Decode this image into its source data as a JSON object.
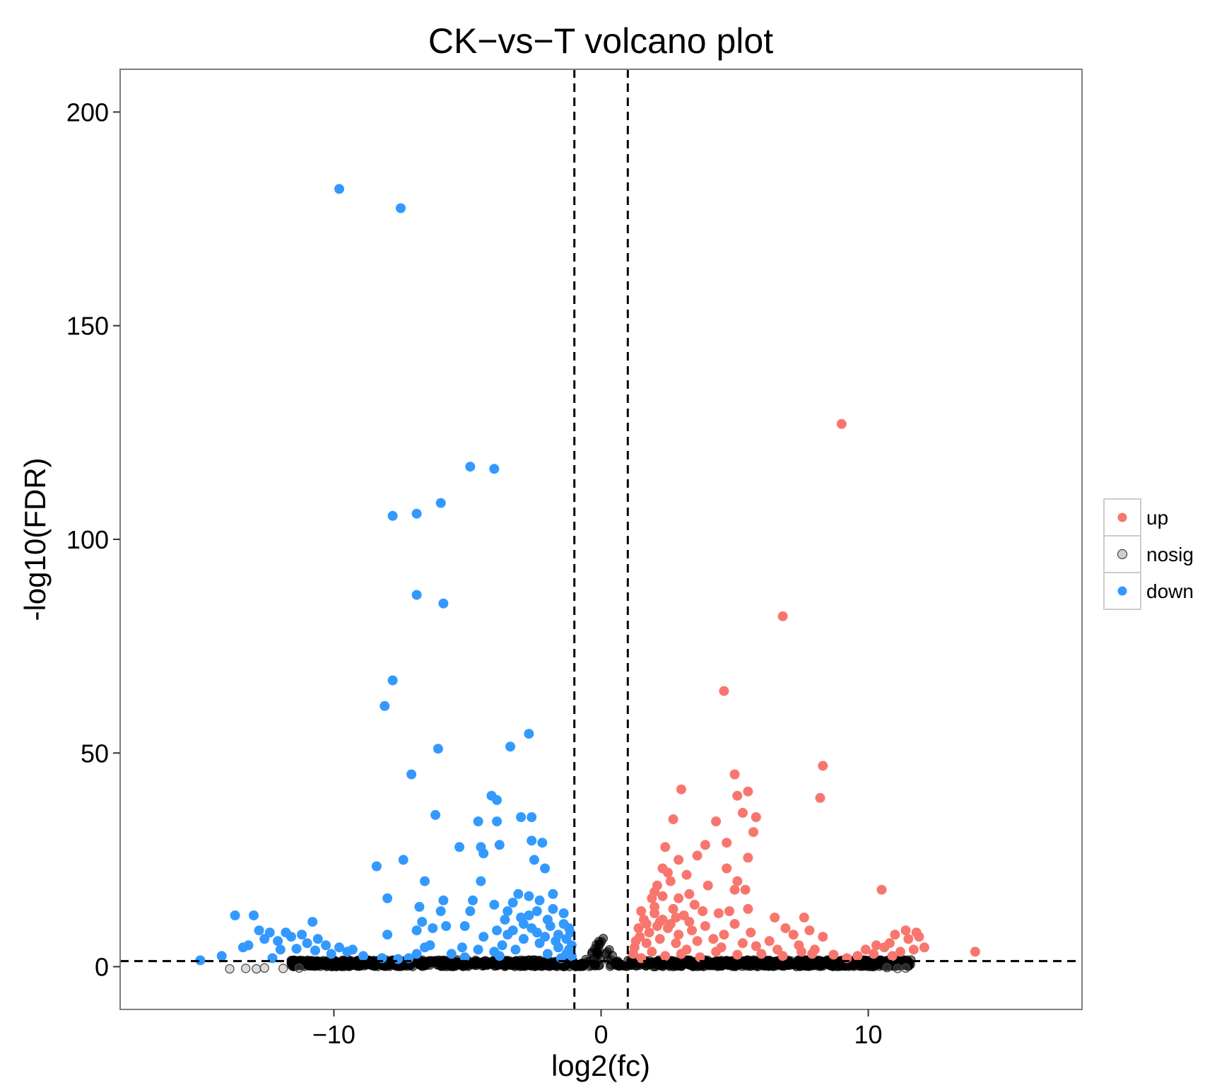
{
  "chart_data": {
    "type": "scatter",
    "title": "CK−vs−T volcano plot",
    "xlabel": "log2(fc)",
    "ylabel": "-log10(FDR)",
    "xlim": [
      -18,
      18
    ],
    "ylim": [
      -10,
      210
    ],
    "x_ticks": [
      -10,
      0,
      10
    ],
    "x_tick_labels": [
      "−10",
      "0",
      "10"
    ],
    "y_ticks": [
      0,
      50,
      100,
      150,
      200
    ],
    "y_tick_labels": [
      "0",
      "50",
      "100",
      "150",
      "200"
    ],
    "grid": false,
    "legend_position": "right",
    "thresholds": {
      "x": [
        -1,
        1
      ],
      "y": 1.3
    },
    "colors": {
      "up": "#F8766D",
      "nosig": "#000000",
      "down": "#3399FF"
    },
    "legend": [
      {
        "key": "up",
        "label": "up"
      },
      {
        "key": "nosig",
        "label": "nosig"
      },
      {
        "key": "down",
        "label": "down"
      }
    ],
    "series": [
      {
        "name": "down",
        "points": [
          [
            -9.8,
            182
          ],
          [
            -7.5,
            177.5
          ],
          [
            -4.9,
            117
          ],
          [
            -4.0,
            116.5
          ],
          [
            -6.0,
            108.5
          ],
          [
            -6.9,
            106
          ],
          [
            -7.8,
            105.5
          ],
          [
            -6.9,
            87
          ],
          [
            -5.9,
            85
          ],
          [
            -7.8,
            67
          ],
          [
            -8.1,
            61
          ],
          [
            -3.4,
            51.5
          ],
          [
            -2.7,
            54.5
          ],
          [
            -6.1,
            51
          ],
          [
            -7.1,
            45
          ],
          [
            -4.1,
            40
          ],
          [
            -3.9,
            39
          ],
          [
            -6.2,
            35.5
          ],
          [
            -3.0,
            35
          ],
          [
            -2.6,
            35
          ],
          [
            -4.6,
            34
          ],
          [
            -3.9,
            34
          ],
          [
            -2.6,
            29.5
          ],
          [
            -2.2,
            29
          ],
          [
            -3.8,
            28.5
          ],
          [
            -4.5,
            28
          ],
          [
            -5.3,
            28
          ],
          [
            -4.4,
            26.5
          ],
          [
            -2.5,
            25
          ],
          [
            -8.4,
            23.5
          ],
          [
            -7.4,
            25
          ],
          [
            -2.1,
            23
          ],
          [
            -4.5,
            20
          ],
          [
            -6.6,
            20
          ],
          [
            -3.1,
            17
          ],
          [
            -2.7,
            16.5
          ],
          [
            -1.8,
            17
          ],
          [
            -8.0,
            16
          ],
          [
            -5.9,
            15.5
          ],
          [
            -4.8,
            15.5
          ],
          [
            -4.0,
            14.5
          ],
          [
            -3.3,
            15
          ],
          [
            -2.3,
            15.5
          ],
          [
            -6.8,
            14
          ],
          [
            -6.0,
            13
          ],
          [
            -4.9,
            13
          ],
          [
            -3.5,
            13
          ],
          [
            -2.7,
            12
          ],
          [
            -1.4,
            12.5
          ],
          [
            -6.7,
            10.5
          ],
          [
            -6.3,
            9
          ],
          [
            -5.8,
            9.5
          ],
          [
            -5.1,
            9.5
          ],
          [
            -3.9,
            8.5
          ],
          [
            -3.0,
            11.5
          ],
          [
            -2.0,
            11
          ],
          [
            -8.0,
            7.5
          ],
          [
            -6.9,
            8.5
          ],
          [
            -4.4,
            7
          ],
          [
            -3.5,
            7.5
          ],
          [
            -2.4,
            8
          ],
          [
            -1.2,
            9
          ],
          [
            -13.7,
            12
          ],
          [
            -13.0,
            12
          ],
          [
            -10.8,
            10.5
          ],
          [
            -12.8,
            8.5
          ],
          [
            -12.4,
            8
          ],
          [
            -11.8,
            8
          ],
          [
            -11.2,
            7.5
          ],
          [
            -10.6,
            6.5
          ],
          [
            -11.6,
            7
          ],
          [
            -12.1,
            6
          ],
          [
            -11.0,
            5.5
          ],
          [
            -10.3,
            5
          ],
          [
            -9.8,
            4.5
          ],
          [
            -9.3,
            4
          ],
          [
            -13.2,
            5
          ],
          [
            -13.4,
            4.5
          ],
          [
            -12.0,
            4
          ],
          [
            -10.1,
            3
          ],
          [
            -8.9,
            2.5
          ],
          [
            -12.3,
            2
          ],
          [
            -14.2,
            2.5
          ],
          [
            -15.0,
            1.5
          ],
          [
            -8.2,
            2
          ],
          [
            -7.6,
            1.8
          ],
          [
            -6.6,
            4.5
          ],
          [
            -6.4,
            5
          ],
          [
            -5.2,
            4.5
          ],
          [
            -4.6,
            4
          ],
          [
            -3.7,
            5
          ],
          [
            -2.9,
            6.5
          ],
          [
            -2.3,
            5.5
          ],
          [
            -1.7,
            6
          ],
          [
            -1.3,
            6.5
          ],
          [
            -1.1,
            5
          ],
          [
            -3.2,
            4
          ],
          [
            -5.6,
            3
          ],
          [
            -4.0,
            3.5
          ],
          [
            -2.0,
            3
          ],
          [
            -1.5,
            2
          ],
          [
            -1.2,
            4
          ],
          [
            -6.9,
            3
          ],
          [
            -1.9,
            9.5
          ],
          [
            -2.6,
            9
          ],
          [
            -3.3,
            8.5
          ],
          [
            -2.1,
            7
          ],
          [
            -1.6,
            7.5
          ],
          [
            -1.4,
            10
          ],
          [
            -1.8,
            13.5
          ],
          [
            -2.4,
            13
          ],
          [
            -1.3,
            3
          ],
          [
            -1.15,
            8
          ],
          [
            -3.8,
            2.5
          ],
          [
            -5.1,
            2.2
          ],
          [
            -7.2,
            2
          ],
          [
            -9.5,
            3.5
          ],
          [
            -10.7,
            3.8
          ],
          [
            -11.4,
            4.2
          ],
          [
            -12.6,
            6.5
          ],
          [
            -2.9,
            10
          ],
          [
            -3.6,
            11
          ],
          [
            -1.1,
            2.5
          ],
          [
            -1.6,
            4.5
          ]
        ]
      },
      {
        "name": "up",
        "points": [
          [
            9.0,
            127
          ],
          [
            6.8,
            82
          ],
          [
            4.6,
            64.5
          ],
          [
            8.3,
            47
          ],
          [
            5.0,
            45
          ],
          [
            3.0,
            41.5
          ],
          [
            5.5,
            41
          ],
          [
            5.1,
            40
          ],
          [
            8.2,
            39.5
          ],
          [
            5.3,
            36
          ],
          [
            5.8,
            35
          ],
          [
            2.7,
            34.5
          ],
          [
            4.3,
            34
          ],
          [
            5.7,
            31.5
          ],
          [
            4.7,
            29
          ],
          [
            2.4,
            28
          ],
          [
            3.9,
            28.5
          ],
          [
            3.6,
            26
          ],
          [
            2.9,
            25
          ],
          [
            5.5,
            25.5
          ],
          [
            2.3,
            23
          ],
          [
            2.5,
            22
          ],
          [
            3.2,
            21.5
          ],
          [
            4.7,
            23
          ],
          [
            2.6,
            20
          ],
          [
            5.1,
            20
          ],
          [
            2.1,
            19
          ],
          [
            4.0,
            19
          ],
          [
            5.0,
            18
          ],
          [
            5.4,
            18
          ],
          [
            3.3,
            17
          ],
          [
            2.3,
            16.5
          ],
          [
            2.9,
            16
          ],
          [
            1.9,
            16
          ],
          [
            3.5,
            14.5
          ],
          [
            2.0,
            14
          ],
          [
            2.7,
            13.5
          ],
          [
            3.8,
            13
          ],
          [
            1.5,
            13
          ],
          [
            5.5,
            13.5
          ],
          [
            4.4,
            12.5
          ],
          [
            4.8,
            13
          ],
          [
            3.1,
            12
          ],
          [
            2.3,
            11
          ],
          [
            6.5,
            11.5
          ],
          [
            7.6,
            11.5
          ],
          [
            2.6,
            10
          ],
          [
            2.1,
            9.5
          ],
          [
            3.9,
            9.5
          ],
          [
            5.0,
            10
          ],
          [
            6.9,
            9
          ],
          [
            7.8,
            8.5
          ],
          [
            1.4,
            9
          ],
          [
            1.8,
            8
          ],
          [
            2.9,
            7.5
          ],
          [
            3.4,
            8.5
          ],
          [
            4.6,
            7.5
          ],
          [
            5.6,
            8
          ],
          [
            7.2,
            7.5
          ],
          [
            1.3,
            6
          ],
          [
            1.7,
            5.5
          ],
          [
            2.2,
            6.5
          ],
          [
            2.8,
            5.5
          ],
          [
            3.6,
            6
          ],
          [
            4.2,
            6.5
          ],
          [
            5.3,
            5.5
          ],
          [
            6.3,
            6
          ],
          [
            7.4,
            5
          ],
          [
            8.3,
            7
          ],
          [
            10.5,
            18
          ],
          [
            11.4,
            8.5
          ],
          [
            11.8,
            8
          ],
          [
            11.0,
            7.5
          ],
          [
            11.5,
            6.5
          ],
          [
            10.8,
            5.5
          ],
          [
            11.9,
            7
          ],
          [
            12.1,
            4.5
          ],
          [
            10.3,
            5
          ],
          [
            10.6,
            4.5
          ],
          [
            9.9,
            4
          ],
          [
            10.2,
            3
          ],
          [
            9.6,
            2.5
          ],
          [
            9.2,
            2
          ],
          [
            11.2,
            3.5
          ],
          [
            11.7,
            4
          ],
          [
            10.9,
            2.5
          ],
          [
            14.0,
            3.5
          ],
          [
            1.2,
            3
          ],
          [
            1.5,
            2
          ],
          [
            1.9,
            3.5
          ],
          [
            2.4,
            2.5
          ],
          [
            3.0,
            3
          ],
          [
            3.7,
            2.2
          ],
          [
            4.3,
            3.5
          ],
          [
            5.1,
            2.8
          ],
          [
            6.0,
            3
          ],
          [
            6.8,
            2.5
          ],
          [
            7.5,
            3.5
          ],
          [
            8.0,
            4
          ],
          [
            1.6,
            11
          ],
          [
            2.0,
            12.5
          ],
          [
            2.5,
            9
          ],
          [
            1.25,
            4.5
          ],
          [
            1.7,
            10
          ],
          [
            2.2,
            10.5
          ],
          [
            3.2,
            4
          ],
          [
            4.5,
            4.5
          ],
          [
            6.6,
            4
          ],
          [
            7.9,
            3
          ],
          [
            8.7,
            2.8
          ],
          [
            5.8,
            4.8
          ],
          [
            2.8,
            11.5
          ],
          [
            3.3,
            10.5
          ],
          [
            2.0,
            17.5
          ],
          [
            1.45,
            7
          ]
        ]
      }
    ]
  }
}
